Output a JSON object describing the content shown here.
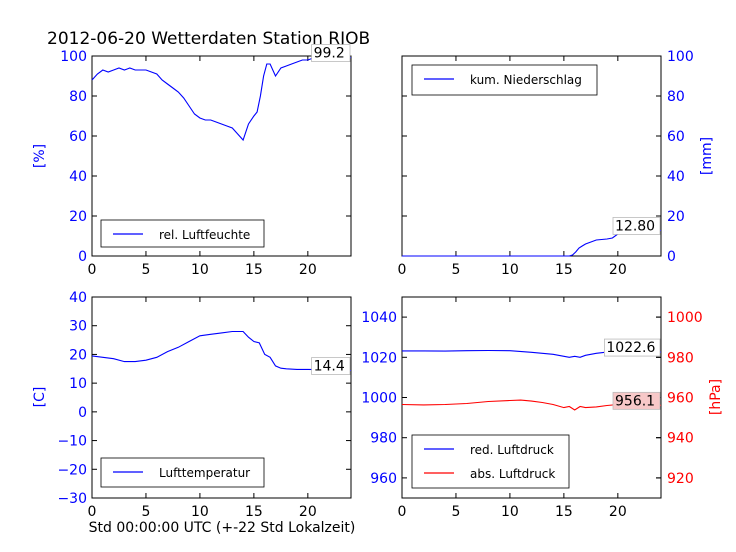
{
  "title": "2012-06-20 Wetterdaten Station RJOB",
  "xlabel": "Std 00:00:00 UTC (+-22 Std Lokalzeit)",
  "colors": {
    "primary": "#0000ff",
    "secondary": "#ff0000"
  },
  "chart_data": [
    {
      "type": "line",
      "name": "humidity",
      "ylabel": "[%]",
      "ylim": [
        0,
        100
      ],
      "yticks": [
        0,
        20,
        40,
        60,
        80,
        100
      ],
      "xlim": [
        0,
        24
      ],
      "xticks": [
        0,
        5,
        10,
        15,
        20
      ],
      "legend": "bottom-left",
      "annotation": "99.2",
      "series": [
        {
          "name": "rel. Luftfeuchte",
          "color": "#0000ff",
          "x": [
            0,
            0.5,
            1,
            1.5,
            2,
            2.5,
            3,
            3.5,
            4,
            4.5,
            5,
            5.5,
            6,
            6.5,
            7,
            7.5,
            8,
            8.5,
            9,
            9.5,
            10,
            10.5,
            11,
            11.5,
            12,
            12.5,
            13,
            13.5,
            14,
            14.5,
            15,
            15.3,
            15.6,
            15.9,
            16.2,
            16.5,
            17,
            17.5,
            18,
            18.5,
            19,
            19.5,
            20,
            20.5,
            21,
            22,
            23,
            24
          ],
          "y": [
            88,
            91,
            93,
            92,
            93,
            94,
            93,
            94,
            93,
            93,
            93,
            92,
            91,
            88,
            86,
            84,
            82,
            79,
            75,
            71,
            69,
            68,
            68,
            67,
            66,
            65,
            64,
            61,
            58,
            66,
            70,
            72,
            80,
            90,
            96,
            96,
            90,
            94,
            95,
            96,
            97,
            98,
            98,
            99,
            99,
            99.2,
            99.2,
            99.2
          ]
        }
      ]
    },
    {
      "type": "line",
      "name": "precipitation",
      "ylabel": "[mm]",
      "ylim": [
        0,
        100
      ],
      "yticks": [
        0,
        20,
        40,
        60,
        80,
        100
      ],
      "y_axis_side": "right",
      "xlim": [
        0,
        24
      ],
      "xticks": [
        0,
        5,
        10,
        15,
        20
      ],
      "legend": "top-left",
      "annotation": "12.80",
      "series": [
        {
          "name": "kum. Niederschlag",
          "color": "#0000ff",
          "x": [
            0,
            15.5,
            15.8,
            16.1,
            16.4,
            16.7,
            17,
            17.5,
            18,
            19,
            19.5,
            20,
            21,
            22,
            23,
            24
          ],
          "y": [
            0,
            0,
            0.5,
            2,
            4,
            5,
            6,
            7,
            8,
            8.5,
            9,
            11,
            12,
            12.5,
            12.8,
            12.8
          ]
        }
      ]
    },
    {
      "type": "line",
      "name": "temperature",
      "ylabel": "[C]",
      "ylim": [
        -30,
        40
      ],
      "yticks": [
        -30,
        -20,
        -10,
        0,
        10,
        20,
        30,
        40
      ],
      "xlim": [
        0,
        24
      ],
      "xticks": [
        0,
        5,
        10,
        15,
        20
      ],
      "legend": "bottom-left",
      "annotation": "14.4",
      "series": [
        {
          "name": "Lufttemperatur",
          "color": "#0000ff",
          "x": [
            0,
            1,
            2,
            3,
            4,
            5,
            6,
            7,
            8,
            9,
            10,
            11,
            12,
            13,
            14,
            14.5,
            15,
            15.5,
            16,
            16.5,
            17,
            17.5,
            18,
            19,
            20,
            21,
            22,
            23,
            24
          ],
          "y": [
            19.5,
            19,
            18.5,
            17.5,
            17.5,
            18,
            19,
            21,
            22.5,
            24.5,
            26.5,
            27,
            27.5,
            28,
            28,
            26,
            24.5,
            24,
            20,
            19,
            16,
            15.2,
            15,
            14.8,
            14.8,
            14.7,
            14.6,
            14.5,
            14.4
          ]
        }
      ]
    },
    {
      "type": "line",
      "name": "pressure",
      "ylabel": "[hPa]",
      "ylim": [
        950,
        1050
      ],
      "yticks": [
        960,
        980,
        1000,
        1020,
        1040
      ],
      "ylim_right": [
        910,
        1010
      ],
      "yticks_right": [
        920,
        940,
        960,
        980,
        1000
      ],
      "xlim": [
        0,
        24
      ],
      "xticks": [
        0,
        5,
        10,
        15,
        20
      ],
      "legend": "bottom-left",
      "annotations": [
        "1022.6",
        "956.1"
      ],
      "series": [
        {
          "name": "red. Luftdruck",
          "color": "#0000ff",
          "axis": "left",
          "x": [
            0,
            2,
            4,
            6,
            8,
            10,
            12,
            13,
            14,
            15,
            15.5,
            16,
            16.5,
            17,
            18,
            19,
            20,
            21,
            22,
            23,
            24
          ],
          "y": [
            1023.2,
            1023.2,
            1023.1,
            1023.3,
            1023.4,
            1023.3,
            1022.5,
            1022,
            1021.5,
            1020.5,
            1020,
            1020.5,
            1020,
            1021,
            1022,
            1022.6,
            1022.5,
            1022.6,
            1022.6,
            1022.6,
            1022.6
          ]
        },
        {
          "name": "abs. Luftdruck",
          "color": "#ff0000",
          "axis": "right",
          "x": [
            0,
            2,
            4,
            6,
            8,
            10,
            11,
            12,
            13,
            14,
            15,
            15.5,
            16,
            16.5,
            17,
            18,
            19,
            20,
            21,
            22,
            23,
            24
          ],
          "y": [
            956.5,
            956.3,
            956.5,
            957,
            958,
            958.5,
            958.7,
            958.2,
            957.5,
            956.5,
            955,
            955.5,
            953.8,
            955.5,
            955,
            955.3,
            956,
            956.5,
            956.1,
            956.1,
            956.1,
            956.1
          ]
        }
      ]
    }
  ]
}
